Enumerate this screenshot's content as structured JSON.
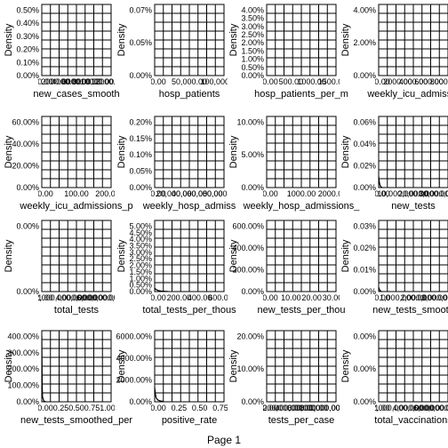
{
  "page": {
    "label": "Page 1"
  },
  "colors": {
    "background": "#ffffff",
    "ink": "#000000"
  },
  "chart_data": [
    {
      "type": "line",
      "title": "",
      "xlabel": "new_cases_smooth",
      "ylabel": "Density",
      "y_ticks": [
        "0.00%",
        "0.10%",
        "0.20%",
        "0.30%",
        "0.40%",
        "0.50%"
      ],
      "x_ticks": [
        "0.00",
        "2000.00",
        "4000.00",
        "6000.00",
        "8000.00",
        "10000.00",
        "12000.00"
      ],
      "ylim": [
        0,
        0.0052
      ],
      "xlim": [
        0,
        1
      ],
      "grid": true,
      "series": [
        {
          "x": [],
          "y": []
        }
      ]
    },
    {
      "type": "line",
      "title": "",
      "xlabel": "hosp_patients",
      "ylabel": "Density",
      "y_ticks": [
        "0.00%",
        "0.05%",
        "0.07%"
      ],
      "x_ticks": [
        "0.00",
        "50,000.00",
        "100,000.00"
      ],
      "ylim": [
        0,
        0.0009
      ],
      "xlim": [
        0,
        1
      ],
      "grid": true,
      "series": [
        {
          "x": [],
          "y": []
        }
      ]
    },
    {
      "type": "line",
      "title": "",
      "xlabel": "hosp_patients_per_m",
      "ylabel": "Density",
      "y_ticks": [
        "0.00%",
        "0.50%",
        "1.00%",
        "1.50%",
        "2.00%",
        "2.50%",
        "3.00%",
        "3.50%",
        "4.00%"
      ],
      "x_ticks": [
        "0.00",
        "500.00",
        "1000.00",
        "1500.00"
      ],
      "ylim": [
        0,
        0.043
      ],
      "xlim": [
        0,
        1
      ],
      "grid": true,
      "series": [
        {
          "x": [],
          "y": []
        }
      ]
    },
    {
      "type": "line",
      "title": "",
      "xlabel": "weekly_icu_admissio",
      "ylabel": "Density",
      "y_ticks": [
        "0.00%",
        "2.00%",
        "4.00%"
      ],
      "x_ticks": [
        "0.00",
        "2000.00",
        "4000.00",
        "6000.00",
        "8000.00"
      ],
      "ylim": [
        0,
        0.058
      ],
      "xlim": [
        0,
        1
      ],
      "grid": true,
      "series": [
        {
          "x": [],
          "y": []
        }
      ]
    },
    {
      "type": "line",
      "title": "",
      "xlabel": "weekly_icu_admissions_p",
      "ylabel": "Density",
      "y_ticks": [
        "0.00%",
        "20.00%",
        "40.00%",
        "60.00%"
      ],
      "x_ticks": [
        "0.00",
        "100.00",
        "200.00"
      ],
      "ylim": [
        0,
        0.7
      ],
      "xlim": [
        0,
        1
      ],
      "grid": true,
      "series": [
        {
          "x": [],
          "y": []
        }
      ]
    },
    {
      "type": "line",
      "title": "",
      "xlabel": "weekly_hosp_admiss",
      "ylabel": "Density",
      "y_ticks": [
        "0.00%",
        "0.05%",
        "0.10%",
        "0.15%",
        "0.20%"
      ],
      "x_ticks": [
        "0.00",
        "20,000.00",
        "40,000.00",
        "60,000.00",
        "80,000.00"
      ],
      "ylim": [
        0,
        0.0023
      ],
      "xlim": [
        0,
        1
      ],
      "grid": true,
      "series": [
        {
          "x": [],
          "y": []
        }
      ]
    },
    {
      "type": "line",
      "title": "",
      "xlabel": "weekly_hosp_admissions_",
      "ylabel": "Density",
      "y_ticks": [
        "0.00%",
        "5.00%",
        "10.00%"
      ],
      "x_ticks": [
        "0.00",
        "1000.00",
        "2000.00"
      ],
      "ylim": [
        0,
        0.125
      ],
      "xlim": [
        0,
        1
      ],
      "grid": true,
      "series": [
        {
          "x": [],
          "y": []
        }
      ]
    },
    {
      "type": "line",
      "title": "",
      "xlabel": "new_tests",
      "ylabel": "Density",
      "y_ticks": [
        "0.00%",
        "0.02%",
        "0.04%",
        "0.06%"
      ],
      "x_ticks": [
        "0.00",
        "10,000,000.00",
        "20,000,000.00",
        "30,000,000.00"
      ],
      "ylim": [
        0,
        0.0007
      ],
      "xlim": [
        0,
        1
      ],
      "grid": true,
      "series": [
        {
          "x": [
            0.0,
            0.01,
            0.02,
            0.03,
            0.05
          ],
          "y": [
            0.00011,
            5e-05,
            2e-05,
            1e-05,
            0.0
          ]
        }
      ]
    },
    {
      "type": "line",
      "title": "",
      "xlabel": "total_tests",
      "ylabel": "Density",
      "y_ticks": [
        "0.00%",
        "0.00%"
      ],
      "x_ticks": [
        "1.00",
        "2,000,000,000.00",
        "4,000,000,000.00",
        "6,000,000,000.00"
      ],
      "ylim": [
        0,
        1
      ],
      "xlim": [
        0,
        1
      ],
      "grid": true,
      "series": [
        {
          "x": [],
          "y": []
        }
      ]
    },
    {
      "type": "line",
      "title": "",
      "xlabel": "total_tests_per_thous",
      "ylabel": "Density",
      "y_ticks": [
        "0.00%",
        "0.50%",
        "1.00%",
        "1.50%",
        "2.00%",
        "2.50%",
        "3.00%",
        "3.50%",
        "4.00%",
        "4.50%",
        "5.00%"
      ],
      "x_ticks": [
        "0.00",
        "200.00",
        "400.00",
        "600.00"
      ],
      "ylim": [
        0,
        0.052
      ],
      "xlim": [
        0,
        1
      ],
      "grid": true,
      "series": [
        {
          "x": [
            0.0,
            0.02,
            0.05,
            0.1,
            0.2
          ],
          "y": [
            0.0025,
            0.0015,
            0.0008,
            0.0003,
            0.0
          ]
        }
      ]
    },
    {
      "type": "line",
      "title": "",
      "xlabel": "new_tests_per_thou",
      "ylabel": "Density",
      "y_ticks": [
        "0.00%",
        "200.00%",
        "400.00%",
        "600.00%"
      ],
      "x_ticks": [
        "0.00",
        "10.00",
        "20.00",
        "30.00"
      ],
      "ylim": [
        0,
        6.8
      ],
      "xlim": [
        0,
        1
      ],
      "grid": true,
      "series": [
        {
          "x": [],
          "y": []
        }
      ]
    },
    {
      "type": "line",
      "title": "",
      "xlabel": "new_tests_smooth",
      "ylabel": "Density",
      "y_ticks": [
        "0.00%",
        "0.01%",
        "0.02%",
        "0.03%"
      ],
      "x_ticks": [
        "0.00",
        "1,000,000.00",
        "2,000,000.00",
        "3,000,000.00"
      ],
      "ylim": [
        0,
        0.00032
      ],
      "xlim": [
        0,
        1
      ],
      "grid": true,
      "series": [
        {
          "x": [
            0.0,
            0.01,
            0.02,
            0.04
          ],
          "y": [
            2e-05,
            1e-05,
            5e-06,
            0.0
          ]
        }
      ]
    },
    {
      "type": "line",
      "title": "",
      "xlabel": "new_tests_smoothed_per",
      "ylabel": "Density",
      "y_ticks": [
        "0.00%",
        "100.00%",
        "200.00%",
        "300.00%",
        "400.00%"
      ],
      "x_ticks": [
        "0.00",
        "0.25",
        "0.50",
        "0.75",
        "1.00"
      ],
      "ylim": [
        0,
        4.3
      ],
      "xlim": [
        0,
        1
      ],
      "grid": true,
      "series": [
        {
          "x": [
            0.0,
            0.003,
            0.006,
            0.01,
            0.03,
            0.06
          ],
          "y": [
            4.0,
            2.6,
            1.0,
            0.3,
            0.05,
            0.0
          ]
        }
      ]
    },
    {
      "type": "line",
      "title": "",
      "xlabel": "positive_rate",
      "ylabel": "Density",
      "y_ticks": [
        "0.00%",
        "2000.00%",
        "4000.00%",
        "6000.00%"
      ],
      "x_ticks": [
        "0.00",
        "0.25",
        "0.50",
        "0.75"
      ],
      "ylim": [
        0,
        68
      ],
      "xlim": [
        0,
        1
      ],
      "grid": true,
      "series": [
        {
          "x": [
            0.0,
            0.01,
            0.02,
            0.04,
            0.07,
            0.12
          ],
          "y": [
            14.0,
            7.5,
            4.0,
            2.0,
            1.0,
            0.3
          ]
        }
      ]
    },
    {
      "type": "line",
      "title": "",
      "xlabel": "tests_per_case",
      "ylabel": "Density",
      "y_ticks": [
        "0.00%",
        "10.00%",
        "20.00%"
      ],
      "x_ticks": [
        "0.00",
        "200,000.00",
        "400,000.00",
        "600,000.00",
        "800,000.00",
        "1,000,000.00"
      ],
      "ylim": [
        0,
        0.27
      ],
      "xlim": [
        0,
        1
      ],
      "grid": true,
      "series": [
        {
          "x": [],
          "y": []
        }
      ]
    },
    {
      "type": "line",
      "title": "",
      "xlabel": "total_vaccinations",
      "ylabel": "Density",
      "y_ticks": [
        "0.00%",
        "0.00%",
        "0.00%"
      ],
      "x_ticks": [
        "1.00",
        "2,000,000,000.00",
        "4,000,000,000.00",
        "6,000,000,000.00"
      ],
      "ylim": [
        0,
        1
      ],
      "xlim": [
        0,
        1
      ],
      "grid": true,
      "series": [
        {
          "x": [],
          "y": []
        }
      ]
    }
  ]
}
